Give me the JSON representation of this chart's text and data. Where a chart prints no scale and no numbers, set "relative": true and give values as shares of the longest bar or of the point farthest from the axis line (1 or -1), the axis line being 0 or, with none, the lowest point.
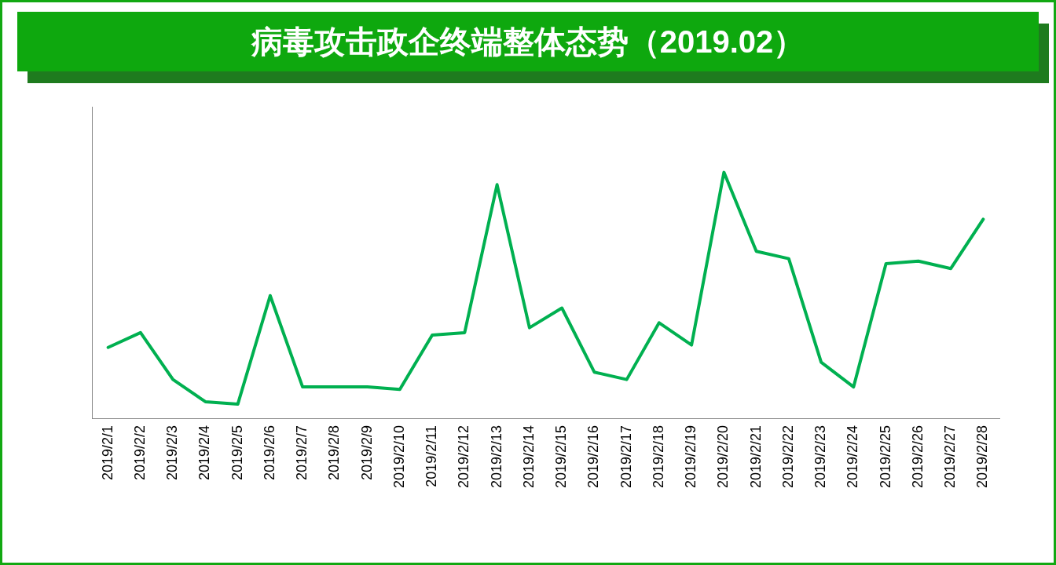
{
  "chart_data": {
    "type": "line",
    "title": "病毒攻击政企终端整体态势（2019.02）",
    "categories": [
      "2019/2/1",
      "2019/2/2",
      "2019/2/3",
      "2019/2/4",
      "2019/2/5",
      "2019/2/6",
      "2019/2/7",
      "2019/2/8",
      "2019/2/9",
      "2019/2/10",
      "2019/2/11",
      "2019/2/12",
      "2019/2/13",
      "2019/2/14",
      "2019/2/15",
      "2019/2/16",
      "2019/2/17",
      "2019/2/18",
      "2019/2/19",
      "2019/2/20",
      "2019/2/21",
      "2019/2/22",
      "2019/2/23",
      "2019/2/24",
      "2019/2/25",
      "2019/2/26",
      "2019/2/27",
      "2019/2/28"
    ],
    "values": [
      0.29,
      0.35,
      0.16,
      0.07,
      0.06,
      0.5,
      0.13,
      0.13,
      0.13,
      0.12,
      0.34,
      0.35,
      0.95,
      0.37,
      0.45,
      0.19,
      0.16,
      0.39,
      0.3,
      1,
      0.68,
      0.65,
      0.23,
      0.13,
      0.63,
      0.64,
      0.61,
      0.81
    ],
    "color": "#00b050",
    "relative": true
  }
}
